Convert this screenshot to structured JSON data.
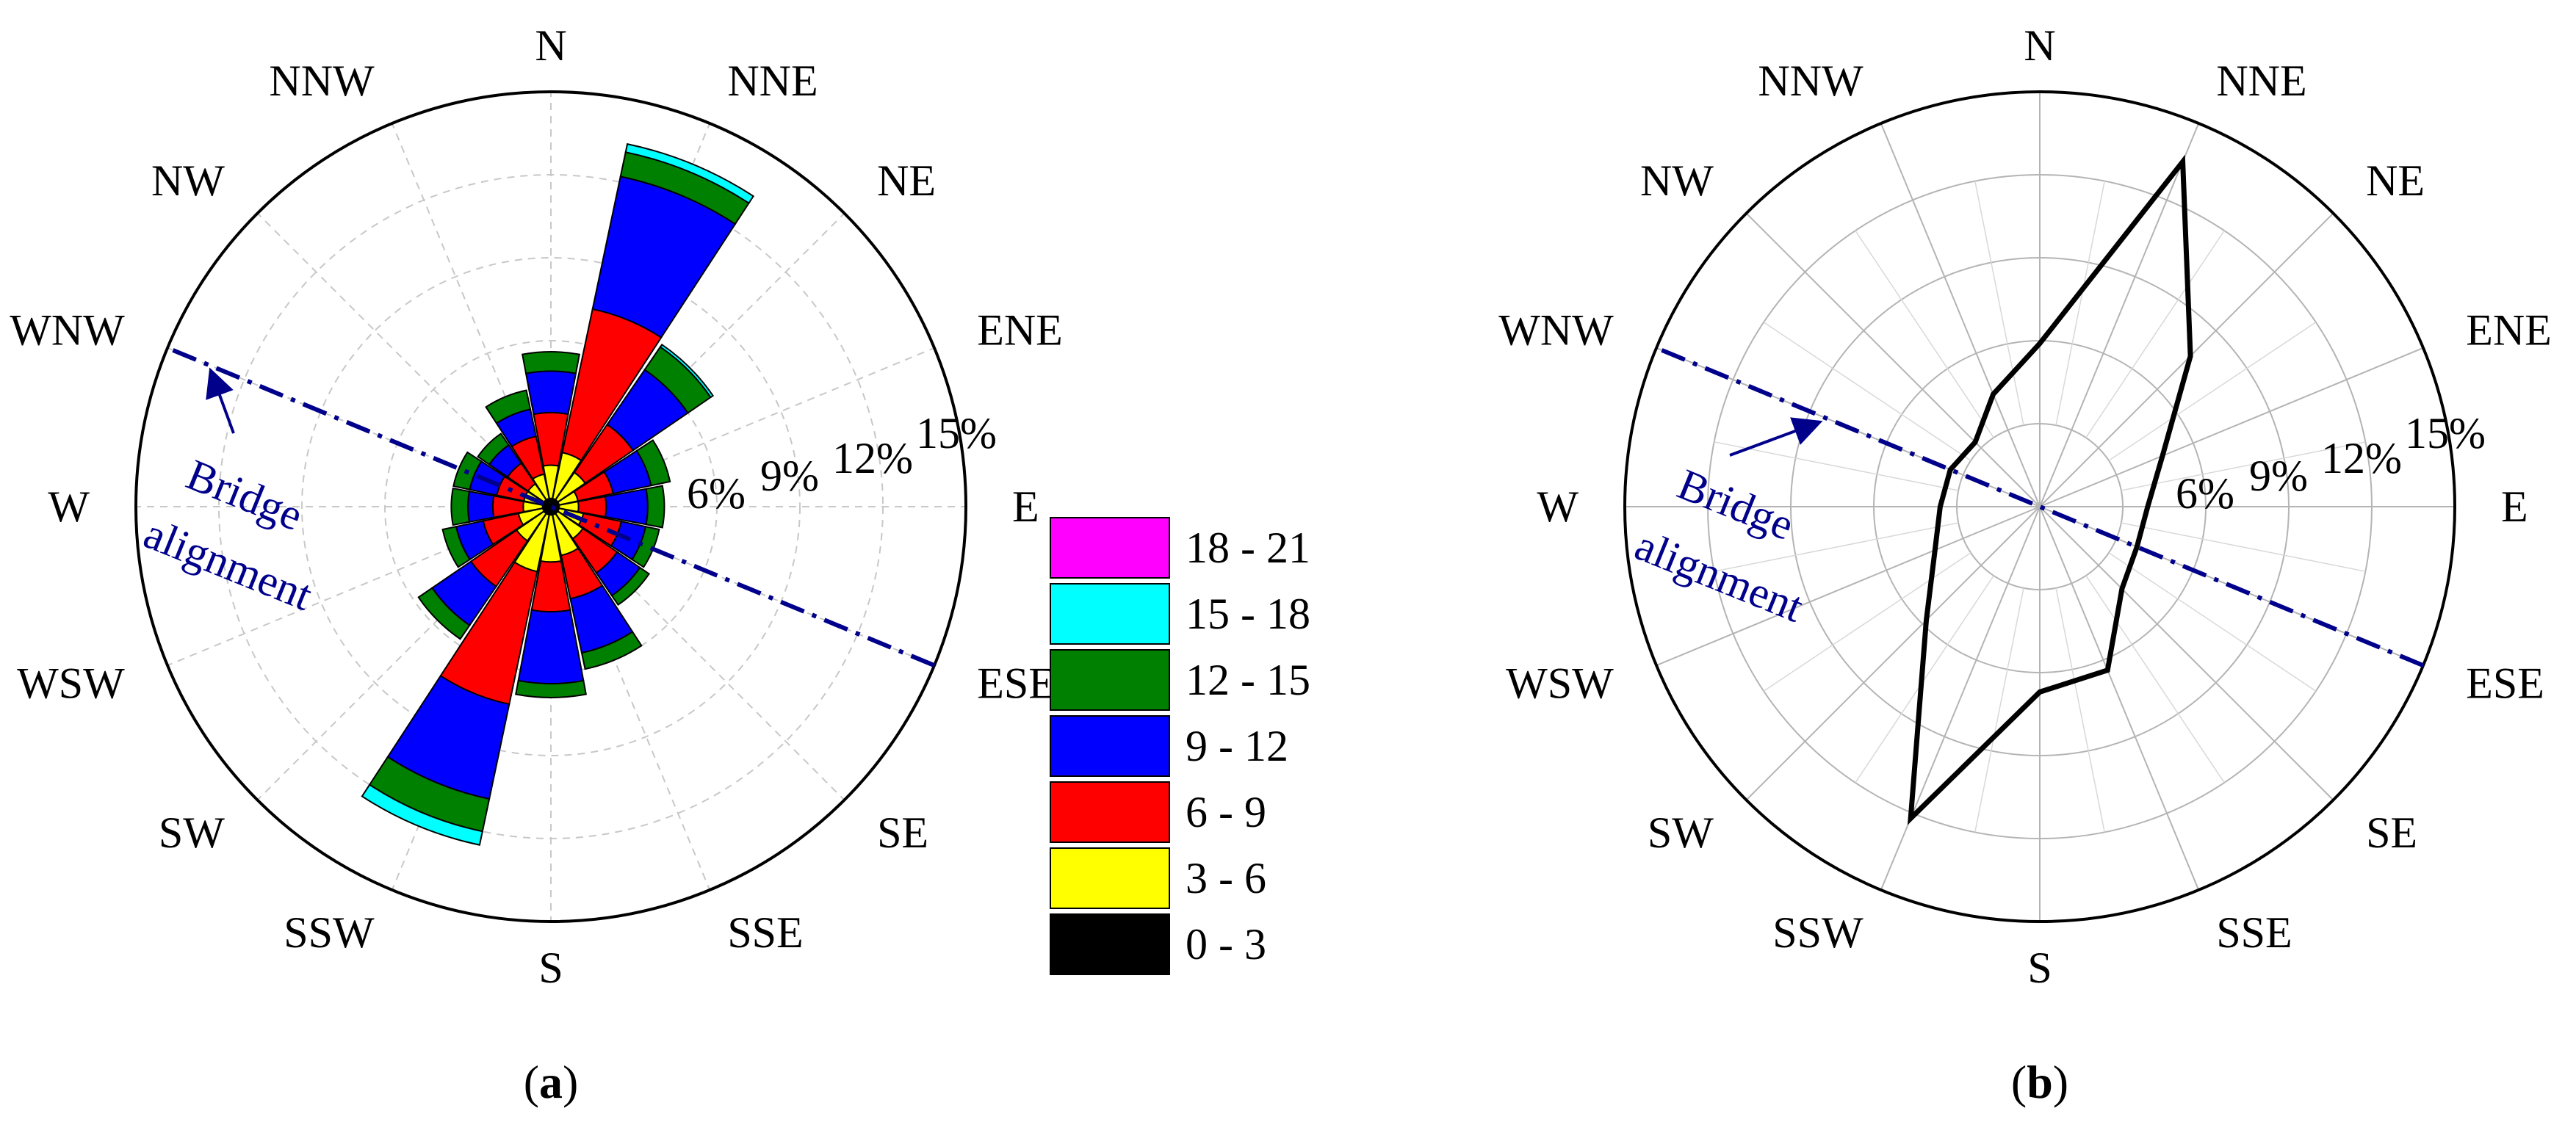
{
  "colors": {
    "annotation": "#00008b",
    "grid": "#c8c8c8",
    "bin_colors": [
      "#000000",
      "#ffff00",
      "#ff0000",
      "#0000ff",
      "#008000",
      "#00ffff",
      "#ff00ff"
    ]
  },
  "chart_data": [
    {
      "panel_label": "(a)",
      "panel_letter": "a",
      "type": "wind-rose",
      "directions": [
        "N",
        "NNE",
        "NE",
        "ENE",
        "E",
        "ESE",
        "SE",
        "SSE",
        "S",
        "SSW",
        "SW",
        "WSW",
        "W",
        "WNW",
        "NW",
        "NNW"
      ],
      "ring_labels": [
        "6%",
        "9%",
        "12%",
        "15%"
      ],
      "rmax": 15,
      "legend": [
        "0 - 3",
        "3 - 6",
        "6 - 9",
        "9 - 12",
        "12 - 15",
        "15 - 18",
        "18 - 21"
      ],
      "stack_cumulative": [
        [
          0.3,
          1.5,
          3.4,
          4.9,
          5.6,
          5.6,
          5.6
        ],
        [
          0.3,
          2.0,
          7.3,
          12.2,
          13.1,
          13.4,
          13.4
        ],
        [
          0.3,
          1.5,
          3.6,
          6.0,
          7.0,
          7.1,
          7.1
        ],
        [
          0.3,
          1.0,
          2.3,
          3.7,
          4.4,
          4.4,
          4.4
        ],
        [
          0.3,
          1.0,
          2.0,
          3.5,
          4.1,
          4.1,
          4.1
        ],
        [
          0.3,
          1.2,
          2.6,
          3.5,
          4.0,
          4.0,
          4.0
        ],
        [
          0.3,
          1.4,
          2.9,
          3.9,
          4.3,
          4.3,
          4.3
        ],
        [
          0.3,
          1.8,
          3.4,
          5.4,
          6.0,
          6.0,
          6.0
        ],
        [
          0.3,
          2.0,
          3.8,
          6.4,
          6.9,
          6.9,
          6.9
        ],
        [
          0.3,
          2.4,
          7.3,
          10.8,
          12.0,
          12.5,
          12.5
        ],
        [
          0.3,
          1.5,
          3.5,
          5.2,
          5.8,
          5.8,
          5.8
        ],
        [
          0.3,
          1.2,
          2.5,
          3.5,
          4.0,
          4.0,
          4.0
        ],
        [
          0.3,
          1.0,
          2.1,
          3.0,
          3.6,
          3.6,
          3.6
        ],
        [
          0.3,
          1.0,
          2.0,
          3.0,
          3.6,
          3.6,
          3.6
        ],
        [
          0.3,
          1.0,
          1.9,
          2.7,
          3.2,
          3.2,
          3.2
        ],
        [
          0.3,
          1.2,
          2.6,
          3.6,
          4.3,
          4.3,
          4.3
        ]
      ],
      "annotation": [
        "Bridge",
        "alignment"
      ],
      "bridge_alignment_azimuth_deg": 112.5
    },
    {
      "panel_label": "(b)",
      "panel_letter": "b",
      "type": "radar",
      "directions": [
        "N",
        "NNE",
        "NE",
        "ENE",
        "E",
        "ESE",
        "SE",
        "SSE",
        "S",
        "SSW",
        "SW",
        "WSW",
        "W",
        "WNW",
        "NW",
        "NNW"
      ],
      "ring_labels": [
        "6%",
        "9%",
        "12%",
        "15%"
      ],
      "rmax": 15,
      "values": [
        5.9,
        13.5,
        7.7,
        4.8,
        3.9,
        3.8,
        4.2,
        6.4,
        6.7,
        12.2,
        5.8,
        4.1,
        3.6,
        3.5,
        3.3,
        4.4
      ],
      "annotation": [
        "Bridge",
        "alignment"
      ],
      "bridge_alignment_azimuth_deg": 112.5
    }
  ]
}
